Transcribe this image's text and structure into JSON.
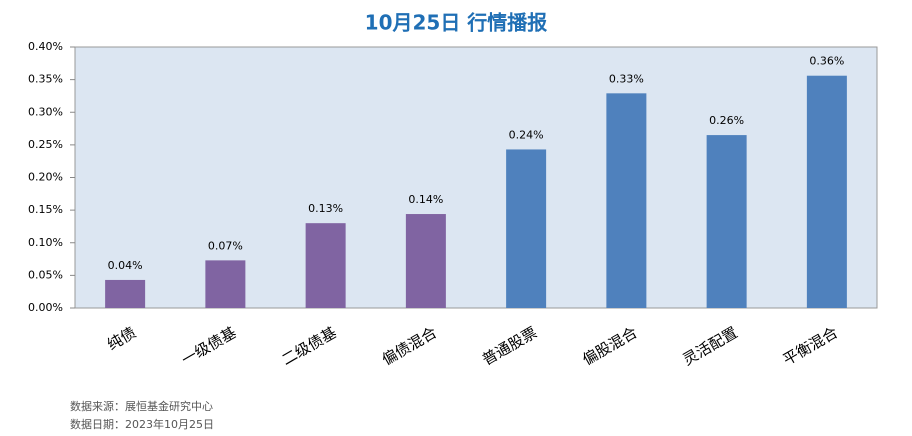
{
  "chart_data": {
    "type": "bar",
    "title": "10月25日  行情播报",
    "categories": [
      "纯债",
      "一级债基",
      "二级债基",
      "偏债混合",
      "普通股票",
      "偏股混合",
      "灵活配置",
      "平衡混合"
    ],
    "values": [
      0.043,
      0.073,
      0.13,
      0.144,
      0.243,
      0.329,
      0.265,
      0.356
    ],
    "value_labels": [
      "0.04%",
      "0.07%",
      "0.13%",
      "0.14%",
      "0.24%",
      "0.33%",
      "0.26%",
      "0.36%"
    ],
    "colors": [
      "#8064a2",
      "#8064a2",
      "#8064a2",
      "#8064a2",
      "#4f81bd",
      "#4f81bd",
      "#4f81bd",
      "#4f81bd"
    ],
    "ylim": [
      0,
      0.4
    ],
    "yticks": [
      {
        "value": 0,
        "label": "0.00%"
      },
      {
        "value": 0.05,
        "label": "0.05%"
      },
      {
        "value": 0.1,
        "label": "0.10%"
      },
      {
        "value": 0.15,
        "label": "0.15%"
      },
      {
        "value": 0.2,
        "label": "0.20%"
      },
      {
        "value": 0.25,
        "label": "0.25%"
      },
      {
        "value": 0.3,
        "label": "0.30%"
      },
      {
        "value": 0.35,
        "label": "0.35%"
      },
      {
        "value": 0.4,
        "label": "0.40%"
      }
    ],
    "notes": [
      "数据来源：展恒基金研究中心",
      "数据日期：2023年10月25日"
    ]
  }
}
